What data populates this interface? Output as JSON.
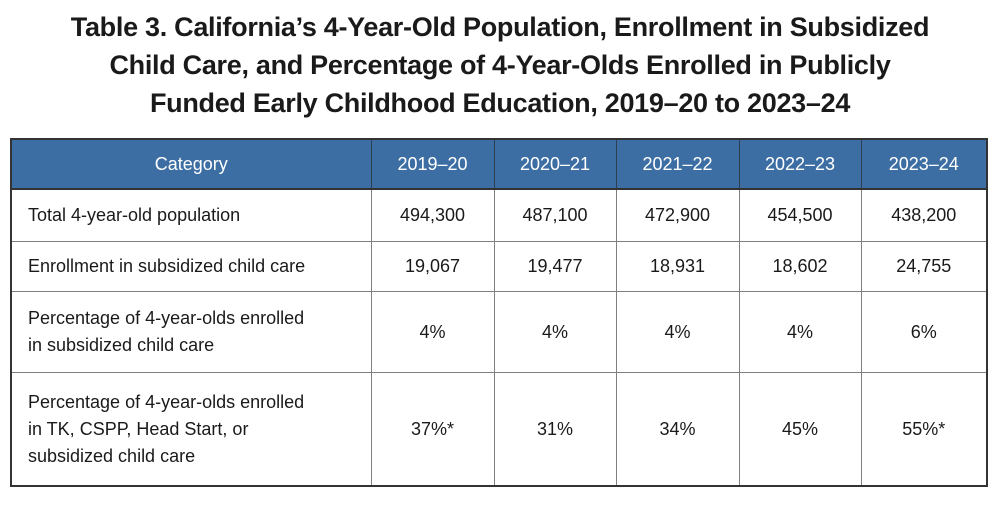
{
  "title": {
    "line1": "Table 3. California’s 4-Year-Old Population, Enrollment in Subsidized",
    "line2": "Child Care, and Percentage of 4-Year-Olds Enrolled in Publicly",
    "line3": "Funded Early Childhood Education, 2019–20 to 2023–24"
  },
  "table": {
    "headers": [
      "Category",
      "2019–20",
      "2020–21",
      "2021–22",
      "2022–23",
      "2023–24"
    ],
    "rows": [
      {
        "category_lines": [
          "Total 4-year-old population"
        ],
        "values": [
          "494,300",
          "487,100",
          "472,900",
          "454,500",
          "438,200"
        ]
      },
      {
        "category_lines": [
          "Enrollment in subsidized child care"
        ],
        "values": [
          "19,067",
          "19,477",
          "18,931",
          "18,602",
          "24,755"
        ]
      },
      {
        "category_lines": [
          "Percentage of 4-year-olds enrolled",
          "in subsidized child care"
        ],
        "values": [
          "4%",
          "4%",
          "4%",
          "4%",
          "6%"
        ]
      },
      {
        "category_lines": [
          "Percentage of 4-year-olds enrolled",
          "in TK, CSPP, Head Start, or",
          "subsidized child care"
        ],
        "values": [
          "37%*",
          "31%",
          "34%",
          "45%",
          "55%*"
        ]
      }
    ]
  },
  "colors": {
    "header_bg": "#3d6ea3",
    "header_text": "#ffffff",
    "border": "#7f7f7f"
  }
}
